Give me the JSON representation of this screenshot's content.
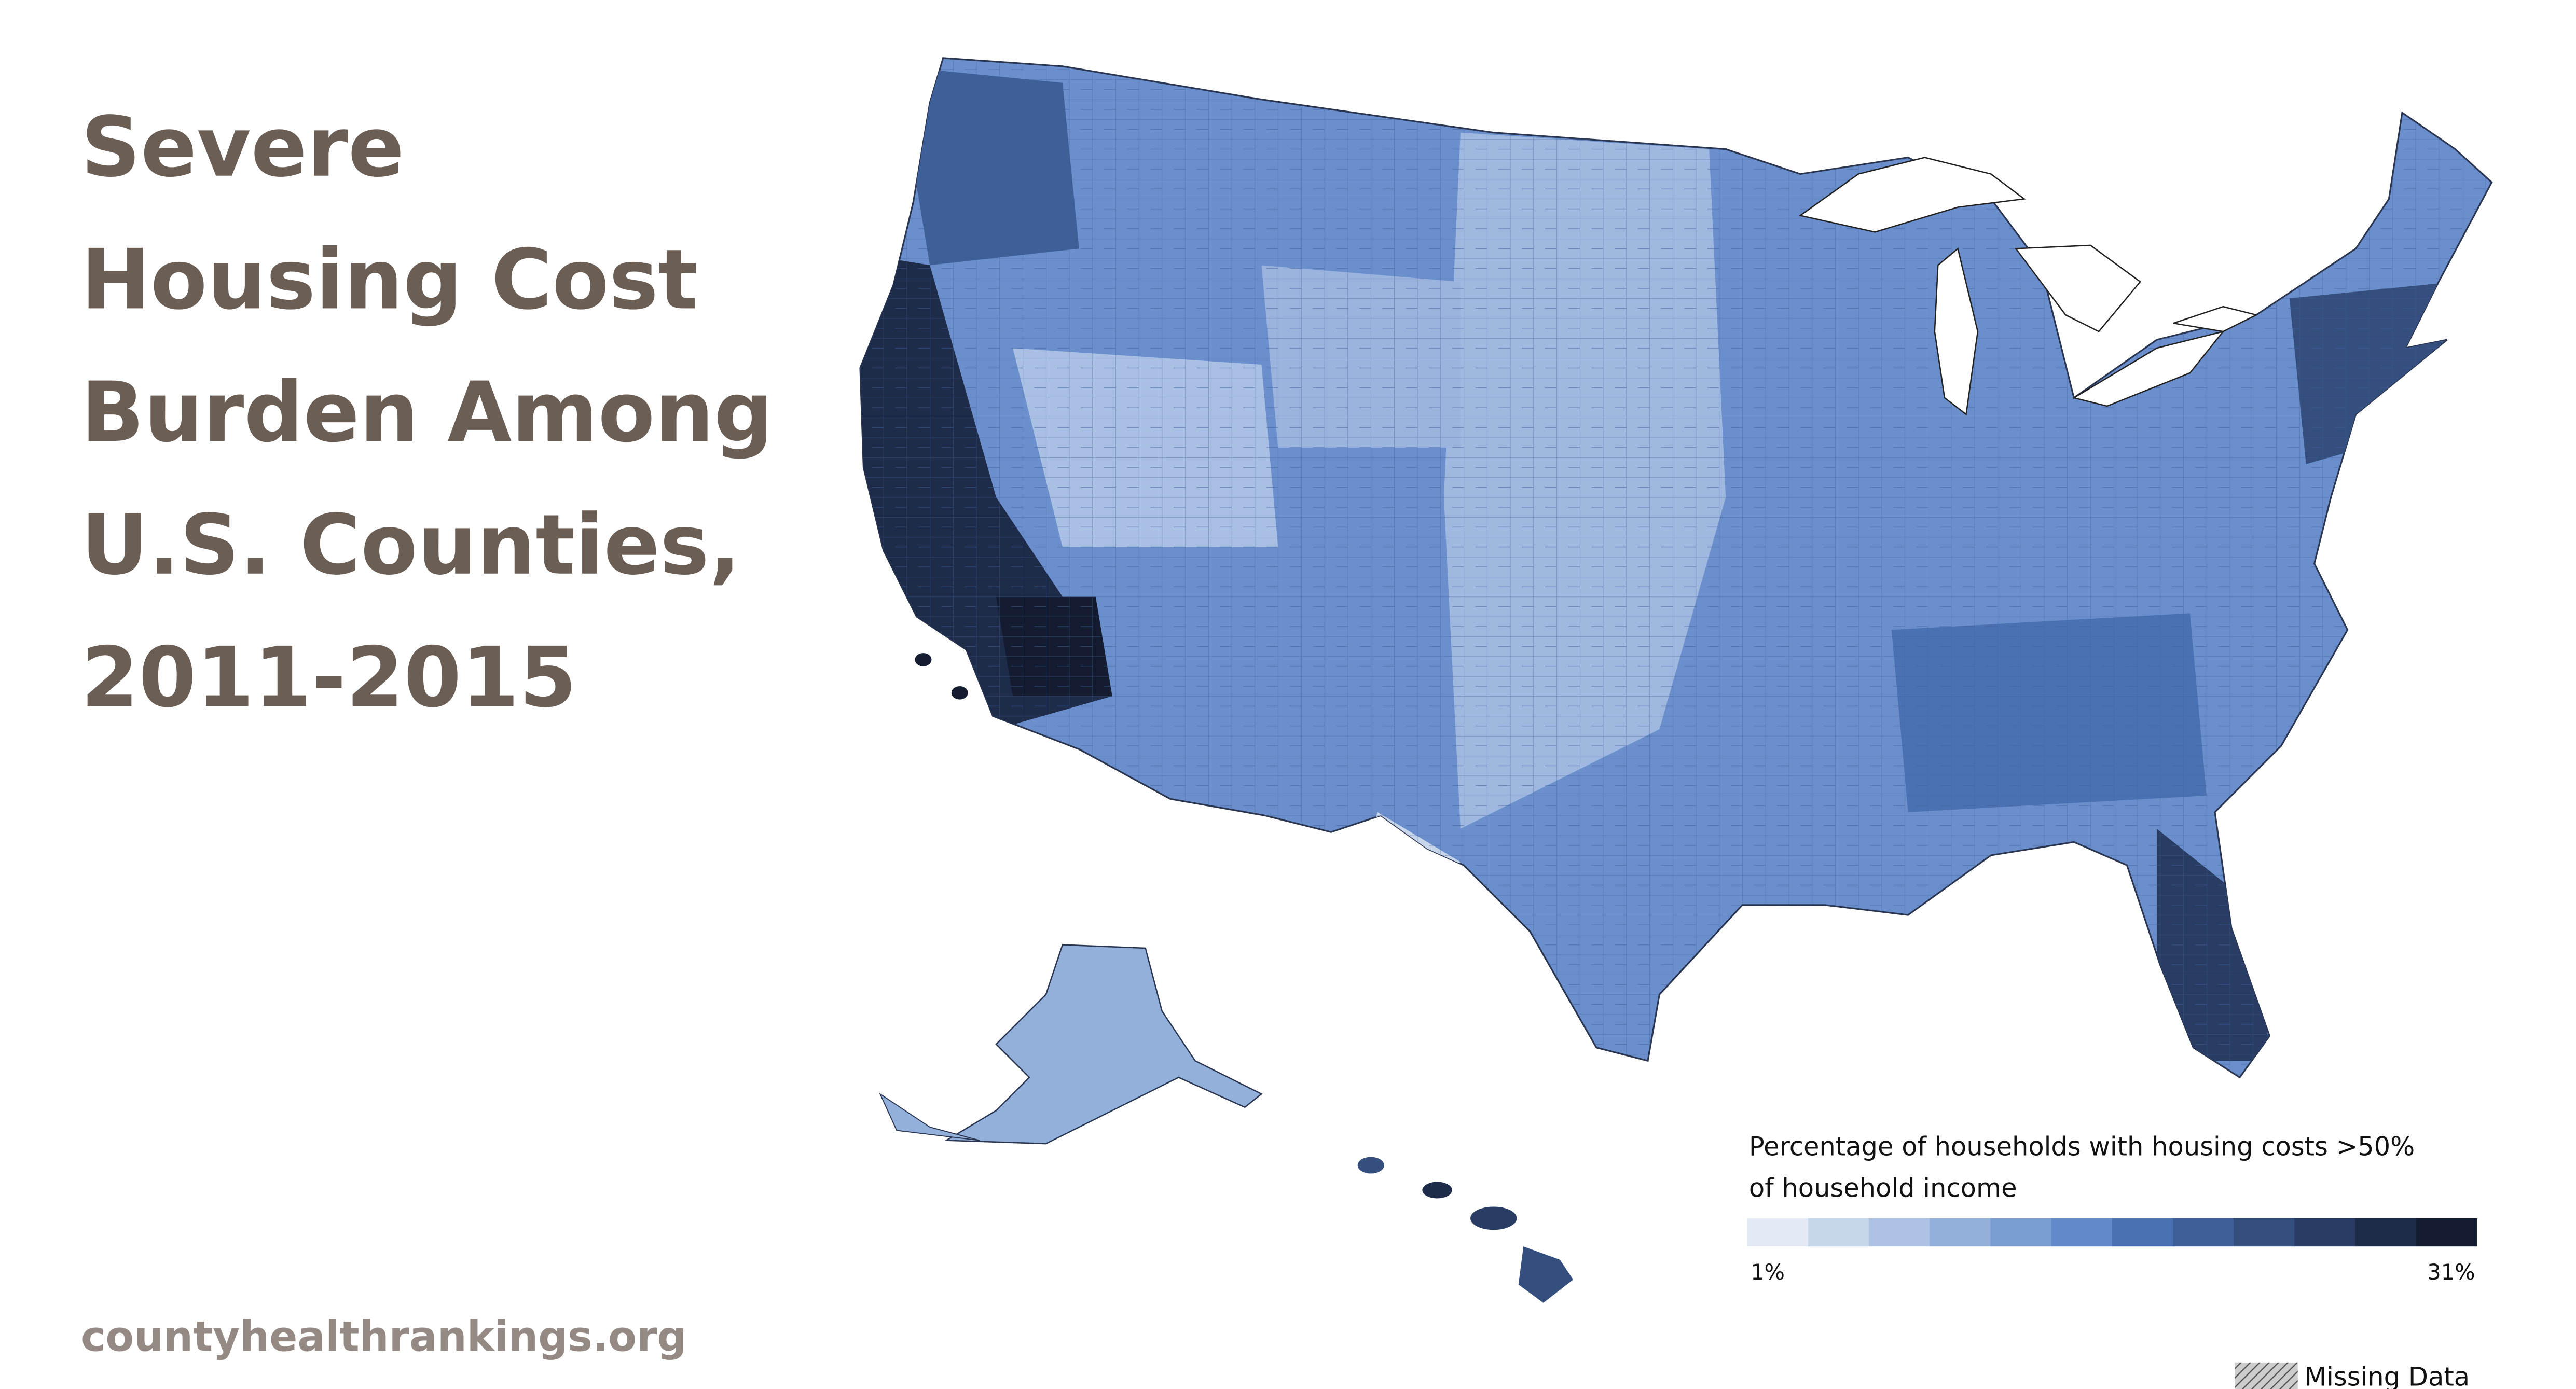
{
  "title_lines": [
    "Severe",
    "Housing Cost",
    "Burden Among",
    "U.S. Counties,",
    "2011-2015"
  ],
  "source": "countyhealthrankings.org",
  "legend": {
    "title_lines": [
      "Percentage of households with housing costs >50%",
      "of household income"
    ],
    "colors": [
      "#e3eaf6",
      "#c8d6ec",
      "#aec3e4",
      "#93b0da",
      "#7b9ed2",
      "#6289c8",
      "#4a72b2",
      "#3f5f98",
      "#344e7e",
      "#293d64",
      "#1e2c4a",
      "#131c30"
    ],
    "min_label": "1%",
    "max_label": "31%",
    "missing_label": "Missing Data"
  }
}
